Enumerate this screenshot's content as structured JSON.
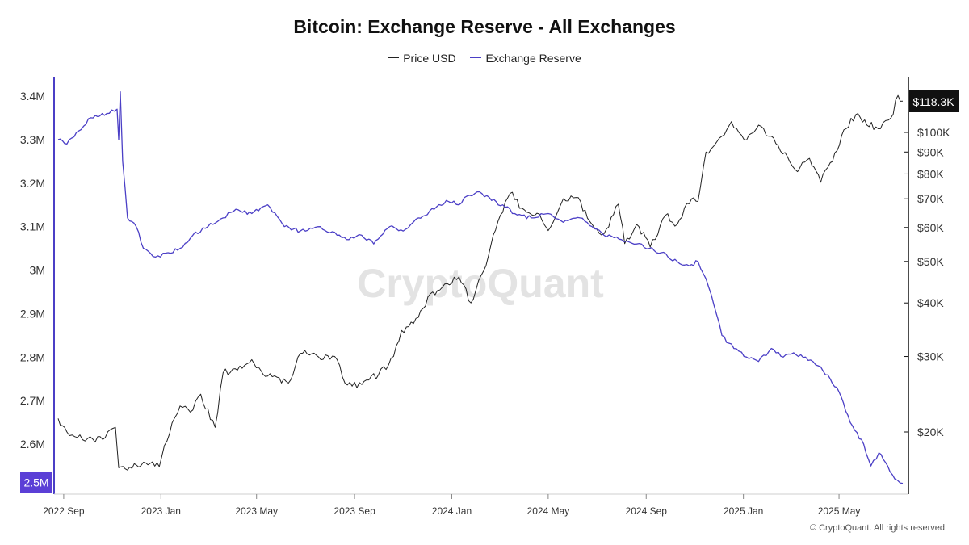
{
  "title": "Bitcoin: Exchange Reserve - All Exchanges",
  "legend": {
    "price_label": "Price USD",
    "reserve_label": "Exchange Reserve"
  },
  "watermark": "CryptoQuant",
  "copyright": "© CryptoQuant. All rights reserved",
  "colors": {
    "price": "#222222",
    "reserve": "#4b3fc6",
    "reserve_badge": "#5b3fd6",
    "price_badge": "#111111"
  },
  "chart_data": {
    "type": "line",
    "title": "Bitcoin: Exchange Reserve - All Exchanges",
    "x_ticks": [
      "2022 Sep",
      "2023 Jan",
      "2023 May",
      "2023 Sep",
      "2024 Jan",
      "2024 May",
      "2024 Sep",
      "2025 Jan",
      "2025 May"
    ],
    "x_range": [
      "2022-08-25",
      "2025-07-20"
    ],
    "left_axis": {
      "ticks": [
        "3.4M",
        "3.3M",
        "3.2M",
        "3.1M",
        "3M",
        "2.9M",
        "2.8M",
        "2.7M",
        "2.6M",
        "2.5M"
      ],
      "ylim": [
        2.5,
        3.4
      ],
      "unit": "M BTC"
    },
    "right_axis": {
      "scale": "log",
      "ticks": [
        "$100K",
        "$90K",
        "$80K",
        "$70K",
        "$60K",
        "$50K",
        "$40K",
        "$30K",
        "$20K"
      ],
      "tick_values": [
        100000,
        90000,
        80000,
        70000,
        60000,
        50000,
        40000,
        30000,
        20000
      ]
    },
    "series": [
      {
        "name": "Exchange Reserve",
        "axis": "left",
        "last_label": "2.5M",
        "x": [
          "2022-08-25",
          "2022-09-05",
          "2022-09-20",
          "2022-10-05",
          "2022-10-25",
          "2022-11-07",
          "2022-11-09",
          "2022-11-11",
          "2022-11-14",
          "2022-11-20",
          "2022-12-01",
          "2022-12-10",
          "2022-12-25",
          "2023-01-10",
          "2023-01-25",
          "2023-02-10",
          "2023-03-01",
          "2023-03-20",
          "2023-04-05",
          "2023-04-25",
          "2023-05-15",
          "2023-06-05",
          "2023-06-25",
          "2023-07-20",
          "2023-08-10",
          "2023-08-25",
          "2023-09-10",
          "2023-09-25",
          "2023-10-15",
          "2023-11-01",
          "2023-11-20",
          "2023-12-10",
          "2023-12-25",
          "2024-01-10",
          "2024-01-20",
          "2024-02-05",
          "2024-02-20",
          "2024-03-05",
          "2024-03-20",
          "2024-04-10",
          "2024-05-01",
          "2024-05-20",
          "2024-06-10",
          "2024-06-25",
          "2024-07-10",
          "2024-08-01",
          "2024-08-20",
          "2024-09-05",
          "2024-09-20",
          "2024-10-10",
          "2024-10-25",
          "2024-11-05",
          "2024-11-15",
          "2024-11-25",
          "2024-12-05",
          "2024-12-20",
          "2025-01-05",
          "2025-01-20",
          "2025-02-05",
          "2025-02-20",
          "2025-03-05",
          "2025-03-20",
          "2025-04-05",
          "2025-04-20",
          "2025-05-01",
          "2025-05-15",
          "2025-06-01",
          "2025-06-10",
          "2025-06-20",
          "2025-07-01",
          "2025-07-10",
          "2025-07-20"
        ],
        "values": [
          3.3,
          3.29,
          3.32,
          3.35,
          3.36,
          3.37,
          3.3,
          3.41,
          3.25,
          3.12,
          3.1,
          3.05,
          3.03,
          3.04,
          3.05,
          3.08,
          3.1,
          3.12,
          3.14,
          3.13,
          3.15,
          3.1,
          3.09,
          3.1,
          3.08,
          3.07,
          3.08,
          3.06,
          3.1,
          3.09,
          3.12,
          3.14,
          3.16,
          3.15,
          3.17,
          3.18,
          3.16,
          3.15,
          3.13,
          3.12,
          3.13,
          3.11,
          3.12,
          3.1,
          3.08,
          3.07,
          3.06,
          3.05,
          3.04,
          3.02,
          3.01,
          3.02,
          2.98,
          2.92,
          2.85,
          2.82,
          2.8,
          2.79,
          2.82,
          2.8,
          2.81,
          2.8,
          2.78,
          2.75,
          2.72,
          2.65,
          2.6,
          2.55,
          2.58,
          2.55,
          2.52,
          2.51
        ]
      },
      {
        "name": "Price USD",
        "axis": "right",
        "last_label": "$118.3K",
        "x": [
          "2022-08-25",
          "2022-09-05",
          "2022-09-15",
          "2022-10-01",
          "2022-10-20",
          "2022-11-05",
          "2022-11-09",
          "2022-11-20",
          "2022-12-10",
          "2022-12-30",
          "2023-01-15",
          "2023-01-25",
          "2023-02-10",
          "2023-02-20",
          "2023-03-10",
          "2023-03-20",
          "2023-04-10",
          "2023-04-25",
          "2023-05-15",
          "2023-06-10",
          "2023-06-25",
          "2023-07-15",
          "2023-08-10",
          "2023-08-20",
          "2023-09-10",
          "2023-10-01",
          "2023-10-20",
          "2023-10-30",
          "2023-11-20",
          "2023-12-05",
          "2023-12-20",
          "2024-01-10",
          "2024-01-25",
          "2024-02-10",
          "2024-02-28",
          "2024-03-14",
          "2024-04-01",
          "2024-04-20",
          "2024-05-01",
          "2024-05-20",
          "2024-06-05",
          "2024-06-25",
          "2024-07-10",
          "2024-07-28",
          "2024-08-05",
          "2024-08-20",
          "2024-09-06",
          "2024-09-25",
          "2024-10-10",
          "2024-10-28",
          "2024-11-05",
          "2024-11-15",
          "2024-11-25",
          "2024-12-05",
          "2024-12-17",
          "2025-01-05",
          "2025-01-20",
          "2025-02-05",
          "2025-02-25",
          "2025-03-10",
          "2025-03-25",
          "2025-04-08",
          "2025-04-20",
          "2025-05-10",
          "2025-05-22",
          "2025-06-05",
          "2025-06-22",
          "2025-07-05",
          "2025-07-14",
          "2025-07-20"
        ],
        "values": [
          21500,
          20000,
          19500,
          19300,
          19200,
          20500,
          16500,
          16300,
          17000,
          16600,
          21000,
          23000,
          22500,
          24500,
          20500,
          27500,
          28500,
          29500,
          27000,
          26000,
          30500,
          30200,
          29500,
          26000,
          25800,
          27200,
          30000,
          34500,
          37000,
          42000,
          43500,
          46000,
          40000,
          47500,
          62000,
          72000,
          66000,
          64500,
          59000,
          70000,
          70500,
          61000,
          58000,
          68000,
          55000,
          61000,
          54000,
          64000,
          61000,
          70000,
          69000,
          90000,
          93000,
          98000,
          106000,
          96000,
          104000,
          98000,
          88000,
          81000,
          87000,
          76500,
          85000,
          102000,
          110000,
          104000,
          102000,
          108000,
          122000,
          118300
        ]
      }
    ]
  }
}
